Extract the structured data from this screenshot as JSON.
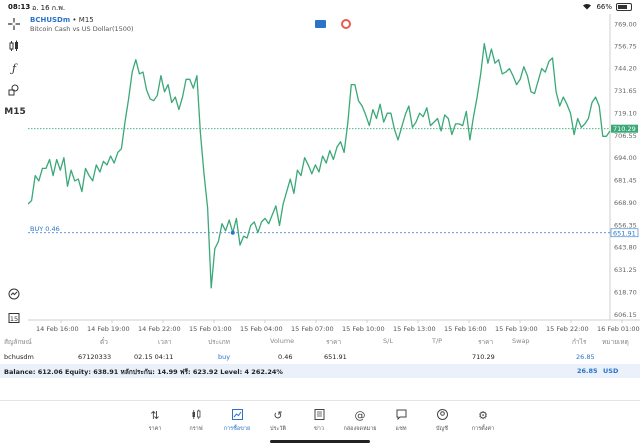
{
  "status": {
    "time": "08:13",
    "date": "อ. 16 ก.พ.",
    "battery": "66%",
    "battery_level": 0.66
  },
  "toolbar": {
    "timeframe": "M15"
  },
  "symbol": {
    "name": "BCHUSDm",
    "timeframe": "M15",
    "description": "Bitcoin Cash vs US Dollar(1500)"
  },
  "chart_data": {
    "type": "line",
    "title": "",
    "xlabel": "",
    "ylabel": "",
    "ylim": [
      603.0,
      769.0
    ],
    "x_ticks": [
      "14 Feb 16:00",
      "14 Feb 19:00",
      "14 Feb 22:00",
      "15 Feb 01:00",
      "15 Feb 04:00",
      "15 Feb 07:00",
      "15 Feb 10:00",
      "15 Feb 13:00",
      "15 Feb 16:00",
      "15 Feb 19:00",
      "15 Feb 22:00",
      "16 Feb 01:00"
    ],
    "y_ticks": [
      "769.00",
      "756.75",
      "744.20",
      "731.65",
      "719.10",
      "706.55",
      "694.00",
      "681.45",
      "668.90",
      "656.35",
      "643.80",
      "631.25",
      "618.70",
      "606.15"
    ],
    "current_price": 710.29,
    "buy_price": 651.91,
    "buy_label": "BUY 0.46",
    "current_label": "710.29",
    "buy_tag": "651.91",
    "color": "#3aa877",
    "series": [
      {
        "x": [
          0,
          1,
          2,
          3,
          4,
          5,
          6,
          7,
          8,
          9,
          10,
          11,
          12,
          13,
          14,
          15,
          16,
          17,
          18,
          19,
          20,
          21,
          22,
          23,
          24,
          25,
          26,
          27,
          28,
          29,
          30,
          31,
          32,
          33,
          34,
          35,
          36,
          37,
          38,
          39,
          40,
          41,
          42,
          43,
          44,
          45,
          46,
          47,
          48,
          49,
          50,
          51,
          52,
          53,
          54,
          55,
          56,
          57,
          58,
          59,
          60,
          61,
          62,
          63,
          64,
          65,
          66,
          67,
          68,
          69,
          70,
          71,
          72,
          73,
          74,
          75,
          76,
          77,
          78,
          79,
          80,
          81,
          82,
          83,
          84,
          85,
          86,
          87,
          88,
          89,
          90,
          91,
          92,
          93,
          94,
          95,
          96,
          97,
          98,
          99,
          100,
          101,
          102,
          103,
          104,
          105,
          106,
          107,
          108,
          109,
          110,
          111,
          112,
          113,
          114,
          115,
          116,
          117,
          118,
          119,
          120,
          121,
          122,
          123,
          124,
          125,
          126,
          127,
          128,
          129,
          130,
          131,
          132,
          133,
          134,
          135,
          136,
          137,
          138,
          139,
          140,
          141,
          142,
          143,
          144,
          145,
          146,
          147,
          148,
          149,
          150,
          151,
          152,
          153,
          154,
          155,
          156,
          157,
          158,
          159,
          160,
          161,
          162
        ],
        "values": [
          668,
          670,
          684,
          681,
          688,
          688,
          693,
          684,
          693,
          687,
          694,
          678,
          687,
          681,
          682,
          675,
          688,
          684,
          681,
          690,
          686,
          692,
          690,
          695,
          691,
          697,
          699,
          714,
          727,
          742,
          749,
          741,
          742,
          732,
          727,
          726,
          729,
          740,
          731,
          735,
          725,
          728,
          721,
          728,
          738,
          738,
          733,
          740,
          708,
          685,
          666,
          621,
          643,
          647,
          657,
          653,
          659,
          652,
          660,
          645,
          650,
          649,
          656,
          658,
          652,
          658,
          660,
          657,
          662,
          667,
          656,
          668,
          675,
          682,
          674,
          687,
          684,
          694,
          690,
          685,
          690,
          686,
          695,
          691,
          698,
          693,
          700,
          703,
          697,
          713,
          735,
          735,
          726,
          723,
          718,
          712,
          721,
          716,
          724,
          714,
          719,
          719,
          710,
          704,
          711,
          718,
          723,
          711,
          714,
          719,
          717,
          722,
          712,
          714,
          716,
          709,
          718,
          716,
          707,
          713,
          713,
          712,
          720,
          704,
          717,
          728,
          741,
          758,
          747,
          755,
          747,
          749,
          741,
          742,
          744,
          740,
          735,
          738,
          745,
          740,
          731,
          730,
          737,
          744,
          742,
          748,
          750,
          731,
          723,
          728,
          724,
          719,
          707,
          716,
          711,
          713,
          716,
          725,
          728,
          723,
          706,
          706,
          709
        ]
      }
    ]
  },
  "trades": {
    "headers": [
      "สัญลักษณ์",
      "ตั๋ว",
      "เวลา",
      "ประเภท",
      "Volume",
      "ราคา",
      "S/L",
      "T/P",
      "ราคา",
      "Swap",
      "กำไร",
      "หมายเหตุ"
    ],
    "row": {
      "symbol": "bchusdm",
      "ticket": "67120333",
      "time": "02.15 04:11",
      "type": "buy",
      "volume": "0.46",
      "price": "651.91",
      "current_price": "710.29",
      "profit": "26.85"
    },
    "balance_text": "Balance: 612.06 Equity: 638.91 หลักประกัน: 14.99 ฟรี: 623.92 Level: 4 262.24%",
    "total_profit": "26.85",
    "currency": "USD"
  },
  "nav": {
    "items": [
      {
        "label": "ราคา",
        "icon": "quotes-icon"
      },
      {
        "label": "กราฟ",
        "icon": "candles-icon"
      },
      {
        "label": "การซื้อขาย",
        "icon": "trade-icon",
        "active": true
      },
      {
        "label": "ประวัติ",
        "icon": "history-icon"
      },
      {
        "label": "ข่าว",
        "icon": "news-icon"
      },
      {
        "label": "กล่องจดหมาย",
        "icon": "mail-icon"
      },
      {
        "label": "แชท",
        "icon": "chat-icon"
      },
      {
        "label": "บัญชี",
        "icon": "account-icon"
      },
      {
        "label": "การตั้งค่า",
        "icon": "settings-icon"
      }
    ]
  }
}
